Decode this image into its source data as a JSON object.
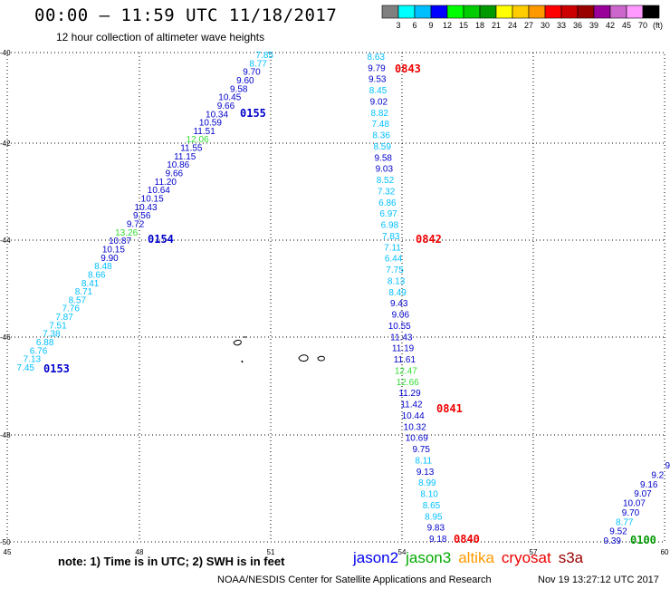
{
  "title": "00:00 – 11:59 UTC 11/18/2017",
  "subtitle": "12 hour collection of altimeter wave heights",
  "colorbar": {
    "unit": "(ft)",
    "bins": [
      {
        "label": "3",
        "color": "#808080"
      },
      {
        "label": "6",
        "color": "#00ffff"
      },
      {
        "label": "9",
        "color": "#00bfff"
      },
      {
        "label": "12",
        "color": "#0000ff"
      },
      {
        "label": "15",
        "color": "#00ff00"
      },
      {
        "label": "18",
        "color": "#00cc00"
      },
      {
        "label": "21",
        "color": "#009900"
      },
      {
        "label": "24",
        "color": "#ffff00"
      },
      {
        "label": "27",
        "color": "#ffcc00"
      },
      {
        "label": "30",
        "color": "#ff9900"
      },
      {
        "label": "33",
        "color": "#ff0000"
      },
      {
        "label": "36",
        "color": "#cc0000"
      },
      {
        "label": "39",
        "color": "#990000"
      },
      {
        "label": "42",
        "color": "#990099"
      },
      {
        "label": "45",
        "color": "#cc66cc"
      },
      {
        "label": "70",
        "color": "#ff99ff"
      },
      {
        "label": "",
        "color": "#000000"
      }
    ]
  },
  "map": {
    "lon_ticks": [
      "45",
      "48",
      "51",
      "54",
      "57",
      "60"
    ],
    "lat_ticks": [
      "-40",
      "-42",
      "-44",
      "-46",
      "-48",
      "-50"
    ]
  },
  "tracks": [
    {
      "id": "track-jason2-west",
      "points": [
        {
          "v": "7.45",
          "c": "#00bfff"
        },
        {
          "v": "7.13",
          "c": "#00bfff"
        },
        {
          "v": "6.76",
          "c": "#00bfff"
        },
        {
          "v": "6.88",
          "c": "#00bfff"
        },
        {
          "v": "7.38",
          "c": "#00bfff"
        },
        {
          "v": "7.51",
          "c": "#00bfff"
        },
        {
          "v": "7.87",
          "c": "#00bfff"
        },
        {
          "v": "7.76",
          "c": "#00bfff"
        },
        {
          "v": "8.57",
          "c": "#00bfff"
        },
        {
          "v": "8.71",
          "c": "#00bfff"
        },
        {
          "v": "8.41",
          "c": "#00bfff"
        },
        {
          "v": "8.66",
          "c": "#00bfff"
        },
        {
          "v": "8.48",
          "c": "#00bfff"
        },
        {
          "v": "9.90",
          "c": "#0000cc"
        },
        {
          "v": "10.15",
          "c": "#0000cc"
        },
        {
          "v": "10.87",
          "c": "#0000cc"
        },
        {
          "v": "13.26",
          "c": "#33dd33"
        },
        {
          "v": "9.72",
          "c": "#0000cc"
        },
        {
          "v": "9.56",
          "c": "#0000cc"
        },
        {
          "v": "10.43",
          "c": "#0000cc"
        },
        {
          "v": "10.15",
          "c": "#0000cc"
        },
        {
          "v": "10.64",
          "c": "#0000cc"
        },
        {
          "v": "11.20",
          "c": "#0000cc"
        },
        {
          "v": "9.66",
          "c": "#0000cc"
        },
        {
          "v": "10.86",
          "c": "#0000cc"
        },
        {
          "v": "11.15",
          "c": "#0000cc"
        },
        {
          "v": "11.55",
          "c": "#0000cc"
        },
        {
          "v": "12.06",
          "c": "#33dd33"
        },
        {
          "v": "11.51",
          "c": "#0000cc"
        },
        {
          "v": "10.59",
          "c": "#0000cc"
        },
        {
          "v": "10.34",
          "c": "#0000cc"
        },
        {
          "v": "9.66",
          "c": "#0000cc"
        },
        {
          "v": "10.45",
          "c": "#0000cc"
        },
        {
          "v": "9.58",
          "c": "#0000cc"
        },
        {
          "v": "9.60",
          "c": "#0000cc"
        },
        {
          "v": "9.70",
          "c": "#0000cc"
        },
        {
          "v": "8.77",
          "c": "#00bfff"
        },
        {
          "v": "7.85",
          "c": "#00bfff"
        }
      ],
      "times": [
        {
          "t": "0153",
          "c": "#0000cc"
        },
        {
          "t": "0154",
          "c": "#0000cc"
        },
        {
          "t": "0155",
          "c": "#0000cc"
        }
      ]
    },
    {
      "id": "track-cryosat-central",
      "points": [
        {
          "v": "9.18",
          "c": "#0000cc"
        },
        {
          "v": "9.83",
          "c": "#0000cc"
        },
        {
          "v": "8.95",
          "c": "#00bfff"
        },
        {
          "v": "8.65",
          "c": "#00bfff"
        },
        {
          "v": "8.10",
          "c": "#00bfff"
        },
        {
          "v": "8.99",
          "c": "#00bfff"
        },
        {
          "v": "9.13",
          "c": "#0000cc"
        },
        {
          "v": "8.11",
          "c": "#00bfff"
        },
        {
          "v": "9.75",
          "c": "#0000cc"
        },
        {
          "v": "10.69",
          "c": "#0000cc"
        },
        {
          "v": "10.32",
          "c": "#0000cc"
        },
        {
          "v": "10.44",
          "c": "#0000cc"
        },
        {
          "v": "11.42",
          "c": "#0000cc"
        },
        {
          "v": "11.29",
          "c": "#0000cc"
        },
        {
          "v": "12.66",
          "c": "#33dd33"
        },
        {
          "v": "12.47",
          "c": "#33dd33"
        },
        {
          "v": "11.61",
          "c": "#0000cc"
        },
        {
          "v": "11.19",
          "c": "#0000cc"
        },
        {
          "v": "11.43",
          "c": "#0000cc"
        },
        {
          "v": "10.55",
          "c": "#0000cc"
        },
        {
          "v": "9.06",
          "c": "#0000cc"
        },
        {
          "v": "9.43",
          "c": "#0000cc"
        },
        {
          "v": "8.49",
          "c": "#00bfff"
        },
        {
          "v": "8.13",
          "c": "#00bfff"
        },
        {
          "v": "7.75",
          "c": "#00bfff"
        },
        {
          "v": "6.44",
          "c": "#00bfff"
        },
        {
          "v": "7.11",
          "c": "#00bfff"
        },
        {
          "v": "7.83",
          "c": "#00bfff"
        },
        {
          "v": "6.98",
          "c": "#00bfff"
        },
        {
          "v": "6.97",
          "c": "#00bfff"
        },
        {
          "v": "6.86",
          "c": "#00bfff"
        },
        {
          "v": "7.32",
          "c": "#00bfff"
        },
        {
          "v": "8.52",
          "c": "#00bfff"
        },
        {
          "v": "9.03",
          "c": "#0000cc"
        },
        {
          "v": "9.58",
          "c": "#0000cc"
        },
        {
          "v": "8.59",
          "c": "#00bfff"
        },
        {
          "v": "8.36",
          "c": "#00bfff"
        },
        {
          "v": "7.48",
          "c": "#00bfff"
        },
        {
          "v": "8.82",
          "c": "#00bfff"
        },
        {
          "v": "9.02",
          "c": "#0000cc"
        },
        {
          "v": "8.45",
          "c": "#00bfff"
        },
        {
          "v": "9.53",
          "c": "#0000cc"
        },
        {
          "v": "9.79",
          "c": "#0000cc"
        },
        {
          "v": "8.63",
          "c": "#00bfff"
        }
      ],
      "times": [
        {
          "t": "0843",
          "c": "#ee0000"
        },
        {
          "t": "0842",
          "c": "#ee0000"
        },
        {
          "t": "0841",
          "c": "#ee0000"
        },
        {
          "t": "0840",
          "c": "#ee0000"
        }
      ]
    },
    {
      "id": "track-jason3-east",
      "points": [
        {
          "v": "9.39",
          "c": "#0000cc"
        },
        {
          "v": "9.52",
          "c": "#0000cc"
        },
        {
          "v": "8.77",
          "c": "#00bfff"
        },
        {
          "v": "9.70",
          "c": "#0000cc"
        },
        {
          "v": "10.07",
          "c": "#0000cc"
        },
        {
          "v": "9.07",
          "c": "#0000cc"
        },
        {
          "v": "9.16",
          "c": "#0000cc"
        },
        {
          "v": "9.2",
          "c": "#0000cc"
        },
        {
          "v": "9",
          "c": "#0000cc"
        }
      ],
      "times": [
        {
          "t": "0100",
          "c": "#009900"
        }
      ]
    }
  ],
  "legend": {
    "note": "note: 1) Time is in UTC; 2) SWH is in feet",
    "satellites": [
      {
        "name": "jason2",
        "color": "#0000ee"
      },
      {
        "name": "jason3",
        "color": "#00aa00"
      },
      {
        "name": "altika",
        "color": "#ff9900"
      },
      {
        "name": "cryosat",
        "color": "#ee0000"
      },
      {
        "name": "s3a",
        "color": "#990000"
      }
    ]
  },
  "footer": {
    "credit": "NOAA/NESDIS Center for Satellite Applications and Research",
    "timestamp": "Nov 19 13:27:12 UTC 2017"
  }
}
